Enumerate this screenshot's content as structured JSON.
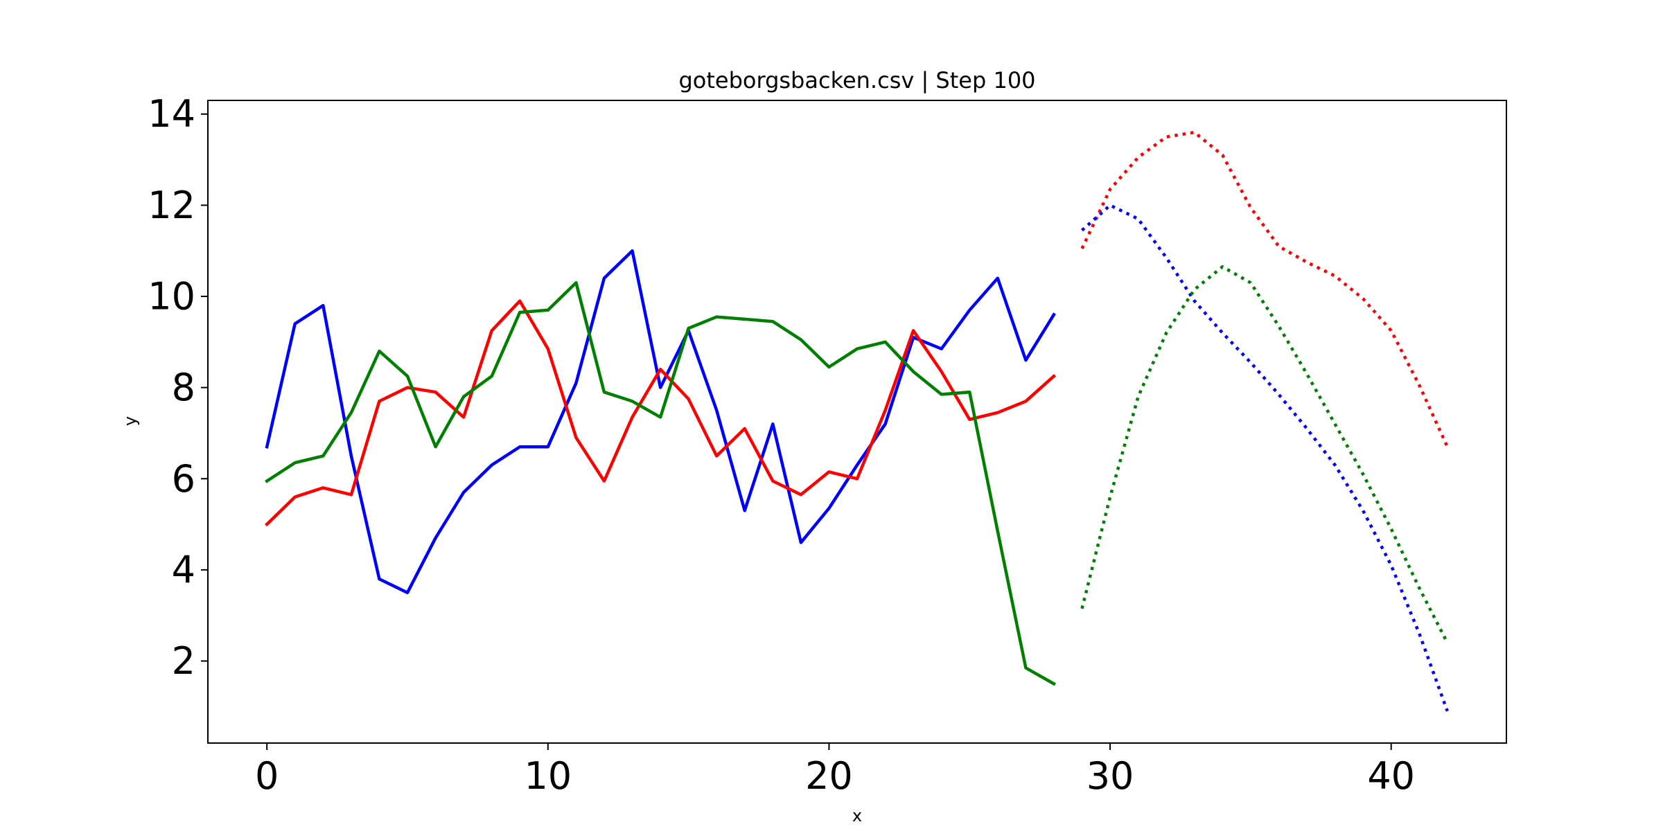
{
  "chart_data": {
    "type": "line",
    "title": "goteborgsbacken.csv | Step 100",
    "xlabel": "x",
    "ylabel": "y",
    "xlim": [
      -2.1,
      44.1
    ],
    "ylim": [
      0.2,
      14.3
    ],
    "xticks": [
      0,
      10,
      20,
      30,
      40
    ],
    "yticks": [
      2,
      4,
      6,
      8,
      10,
      12,
      14
    ],
    "xtick_labels": [
      "0",
      "10",
      "20",
      "30",
      "40"
    ],
    "ytick_labels": [
      "2",
      "4",
      "6",
      "8",
      "10",
      "12",
      "14"
    ],
    "grid": false,
    "legend": "none",
    "series": [
      {
        "color": "#0000ff",
        "style": "solid",
        "x": [
          0,
          1,
          2,
          3,
          4,
          5,
          6,
          7,
          8,
          9,
          10,
          11,
          12,
          13,
          14,
          15,
          16,
          17,
          18,
          19,
          20,
          21,
          22,
          23,
          24,
          25,
          26,
          27,
          28
        ],
        "values": [
          6.7,
          9.4,
          9.8,
          6.5,
          3.8,
          3.5,
          4.7,
          5.7,
          6.3,
          6.7,
          6.7,
          8.1,
          10.4,
          11.0,
          8.0,
          9.25,
          7.5,
          5.3,
          7.2,
          4.6,
          5.35,
          6.3,
          7.2,
          9.1,
          8.85,
          9.7,
          10.4,
          8.6,
          9.6
        ]
      },
      {
        "color": "#ff0000",
        "style": "solid",
        "x": [
          0,
          1,
          2,
          3,
          4,
          5,
          6,
          7,
          8,
          9,
          10,
          11,
          12,
          13,
          14,
          15,
          16,
          17,
          18,
          19,
          20,
          21,
          22,
          23,
          24,
          25,
          26,
          27,
          28
        ],
        "values": [
          5.0,
          5.6,
          5.8,
          5.65,
          7.7,
          8.0,
          7.9,
          7.35,
          9.25,
          9.9,
          8.85,
          6.9,
          5.95,
          7.35,
          8.4,
          7.75,
          6.5,
          7.1,
          5.95,
          5.65,
          6.15,
          6.0,
          7.5,
          9.25,
          8.35,
          7.3,
          7.45,
          7.7,
          8.25
        ]
      },
      {
        "color": "#008000",
        "style": "solid",
        "x": [
          0,
          1,
          2,
          3,
          4,
          5,
          6,
          7,
          8,
          9,
          10,
          11,
          12,
          13,
          14,
          15,
          16,
          17,
          18,
          19,
          20,
          21,
          22,
          23,
          24,
          25,
          26,
          27,
          28
        ],
        "values": [
          5.95,
          6.35,
          6.5,
          7.45,
          8.8,
          8.25,
          6.7,
          7.8,
          8.25,
          9.65,
          9.7,
          10.3,
          7.9,
          7.7,
          7.35,
          9.3,
          9.55,
          9.5,
          9.45,
          9.05,
          8.45,
          8.85,
          9.0,
          8.35,
          7.85,
          7.9,
          4.85,
          1.85,
          1.5
        ]
      },
      {
        "color": "#ff0000",
        "style": "dotted",
        "x": [
          29,
          30,
          31,
          32,
          33,
          34,
          35,
          36,
          37,
          38,
          39,
          40,
          41,
          42
        ],
        "values": [
          11.05,
          12.35,
          13.05,
          13.5,
          13.6,
          13.1,
          11.95,
          11.1,
          10.75,
          10.45,
          9.95,
          9.25,
          8.05,
          6.7
        ]
      },
      {
        "color": "#0000ff",
        "style": "dotted",
        "x": [
          29,
          30,
          31,
          32,
          33,
          34,
          35,
          36,
          37,
          38,
          39,
          40,
          41,
          42
        ],
        "values": [
          11.45,
          12.0,
          11.7,
          10.85,
          9.9,
          9.2,
          8.55,
          7.85,
          7.1,
          6.3,
          5.3,
          4.1,
          2.6,
          0.9
        ]
      },
      {
        "color": "#008000",
        "style": "dotted",
        "x": [
          29,
          30,
          31,
          32,
          33,
          34,
          35,
          36,
          37,
          38,
          39,
          40,
          41,
          42
        ],
        "values": [
          3.15,
          5.6,
          7.8,
          9.2,
          10.15,
          10.65,
          10.3,
          9.35,
          8.3,
          7.2,
          6.1,
          4.9,
          3.6,
          2.4
        ]
      }
    ]
  }
}
